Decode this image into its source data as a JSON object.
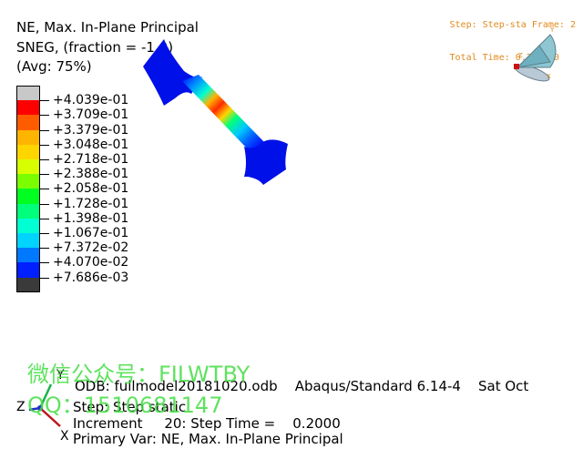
{
  "header": {
    "line1": "NE, Max. In-Plane Principal",
    "line2": "SNEG, (fraction = -1.0)",
    "line3": "(Avg: 75%)"
  },
  "frame_info": {
    "step": "Step: Step-sta Frame: 2",
    "time": "Total Time: 0.200000"
  },
  "legend": {
    "values": [
      "+4.039e-01",
      "+3.709e-01",
      "+3.379e-01",
      "+3.048e-01",
      "+2.718e-01",
      "+2.388e-01",
      "+2.058e-01",
      "+1.728e-01",
      "+1.398e-01",
      "+1.067e-01",
      "+7.372e-02",
      "+4.070e-02",
      "+7.686e-03"
    ],
    "colors": [
      "#c8c8c8",
      "#ff0000",
      "#ff5c00",
      "#ffb400",
      "#ffd500",
      "#d7ff00",
      "#7bff00",
      "#00ff20",
      "#00ff7a",
      "#00ffd3",
      "#00d4ff",
      "#0078ff",
      "#0020ff",
      "#3a3a3a"
    ]
  },
  "info": {
    "odb_line": "ODB: fullmodel20181020.odb    Abaqus/Standard 6.14-4    Sat Oct",
    "step_line": "Step: Step static",
    "increment_line": "Increment     20: Step Time =    0.2000",
    "primary_var_line": "Primary Var: NE, Max. In-Plane Principal"
  },
  "triad_axes": {
    "y": "Y",
    "z": "Z",
    "x": "X"
  },
  "watermark": {
    "line1": "微信公众号：FILWTBY",
    "line2": "QQ：1510681147"
  }
}
